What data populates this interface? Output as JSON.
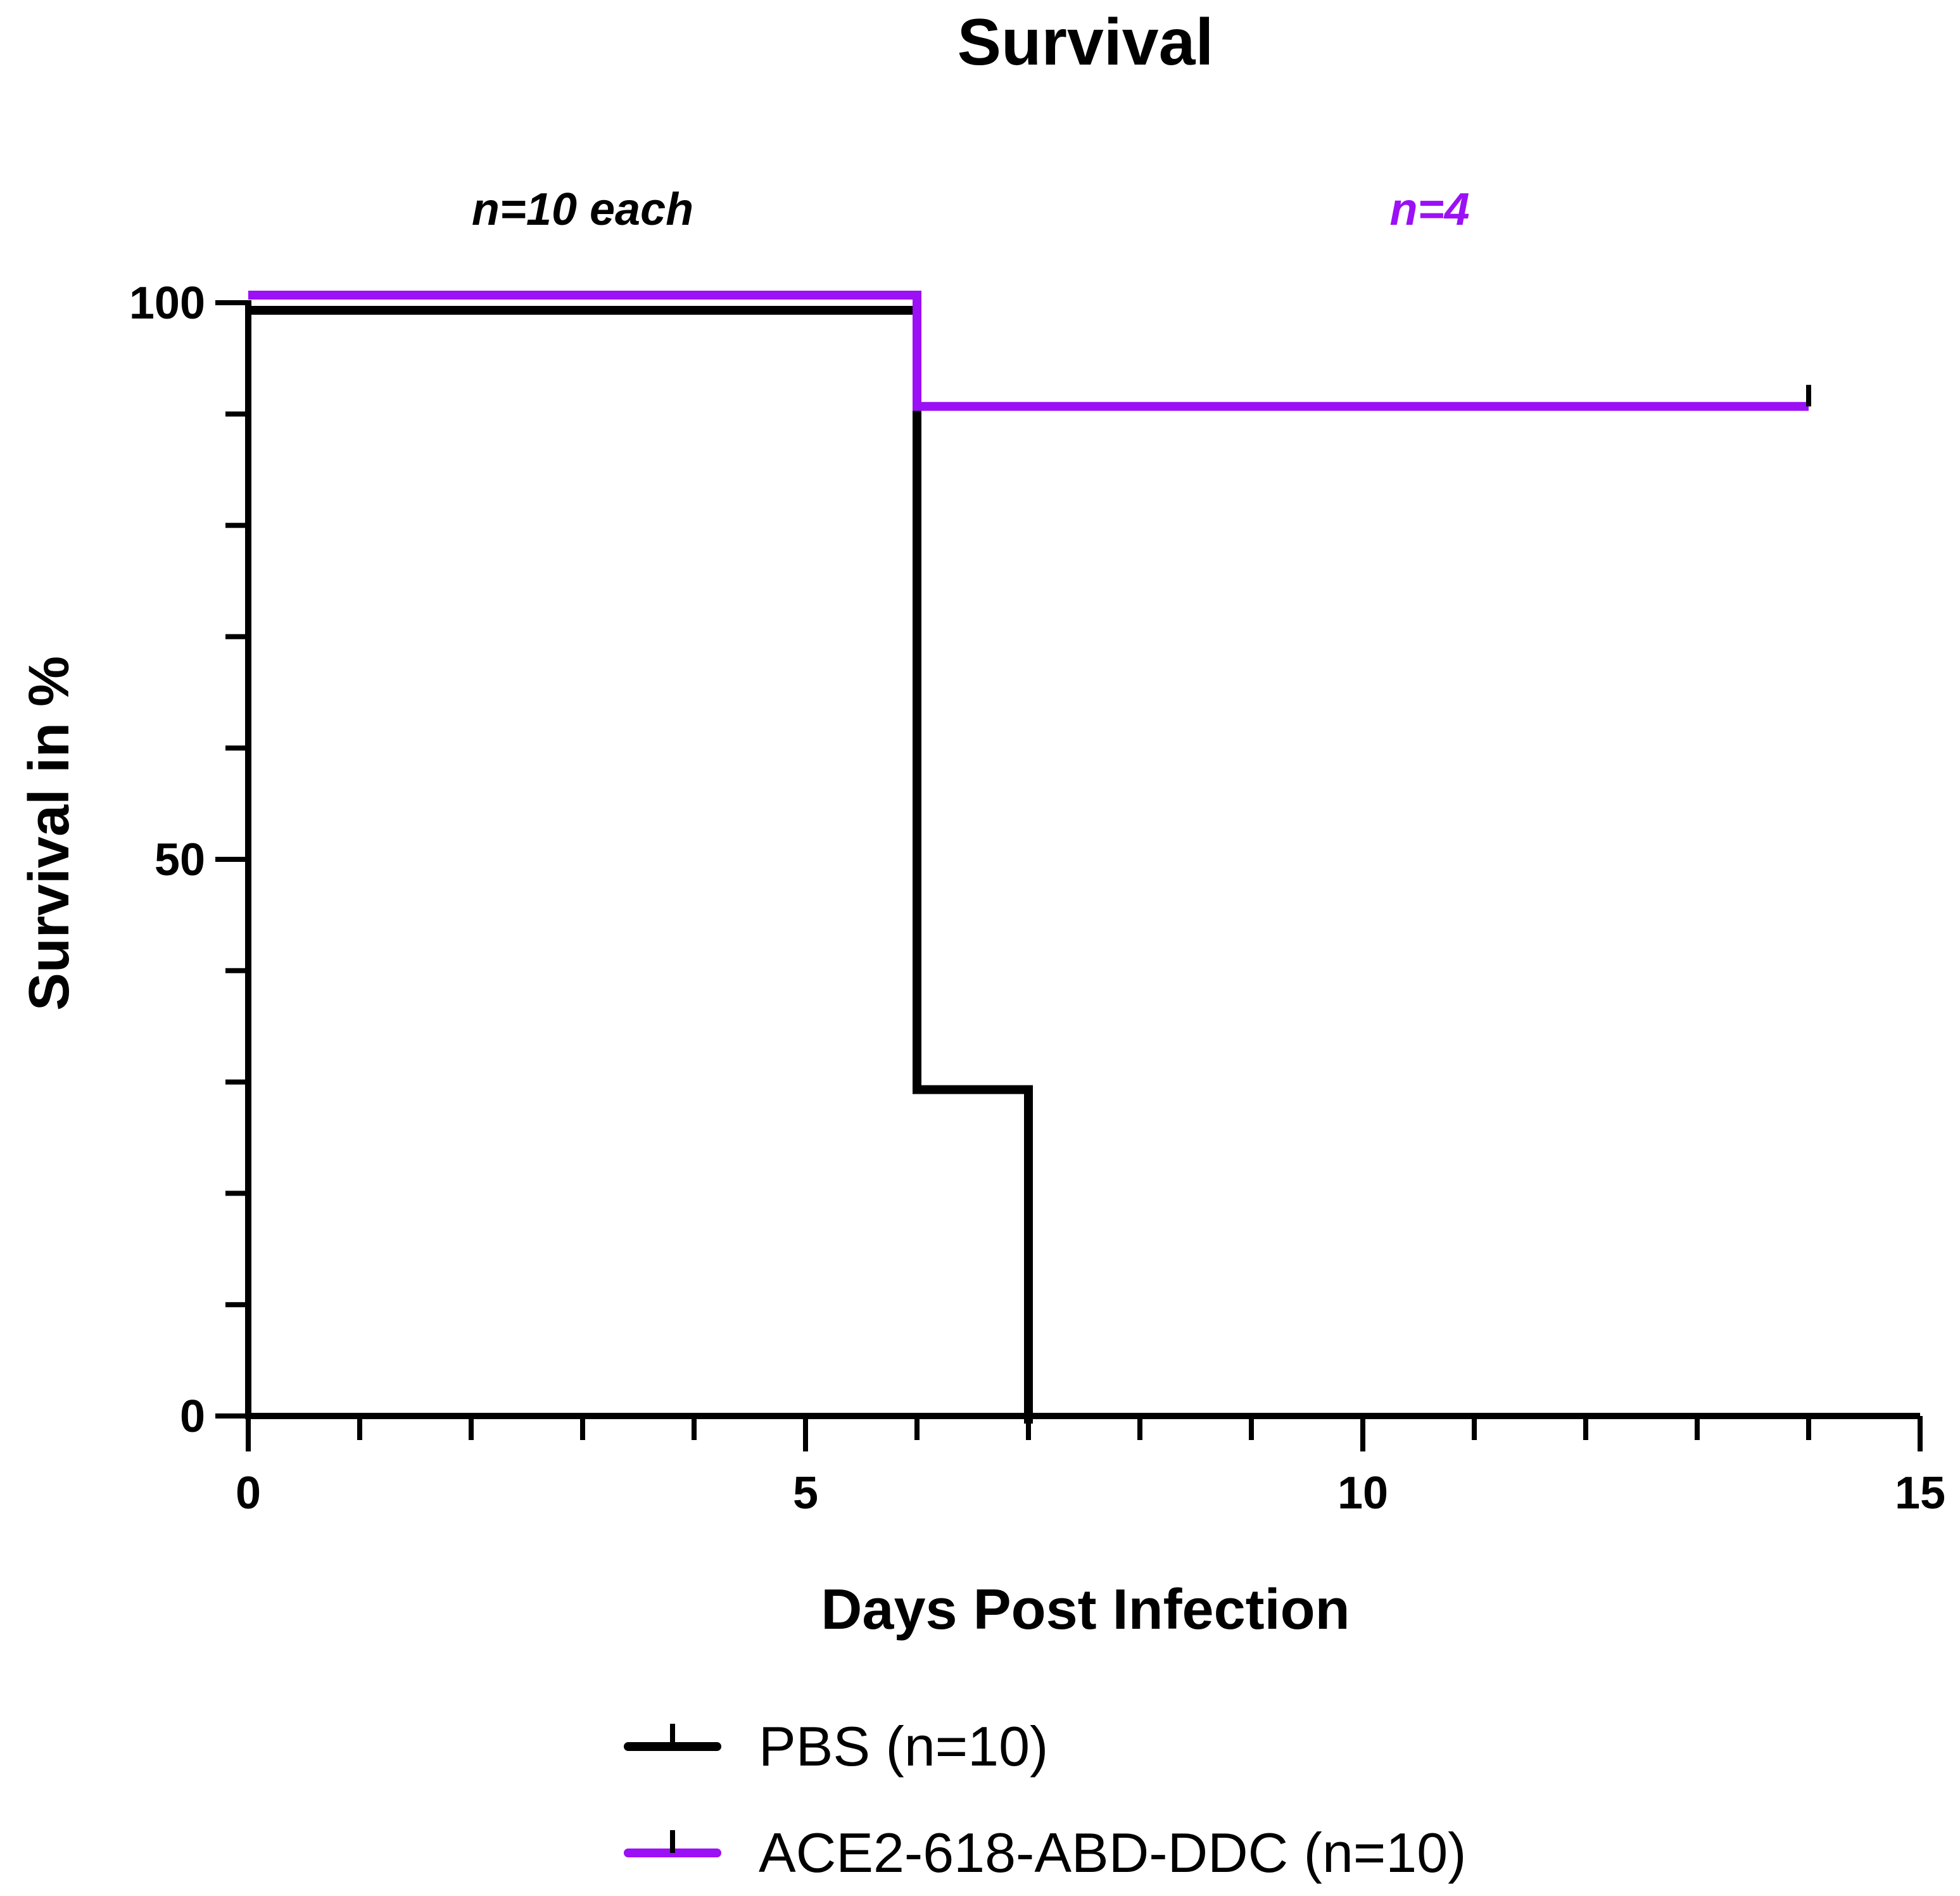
{
  "chart_data": {
    "type": "line",
    "subtype": "kaplan-meier step",
    "title": "Survival",
    "xlabel": "Days Post Infection",
    "ylabel": "Survival in %",
    "xlim": [
      0,
      15
    ],
    "ylim": [
      0,
      100
    ],
    "x_ticks": [
      0,
      5,
      10,
      15
    ],
    "x_minor_tick_step": 1,
    "y_ticks": [
      0,
      50,
      100
    ],
    "y_minor_tick_step": 10,
    "grid": false,
    "legend_position": "bottom-center",
    "annotations": [
      {
        "text": "n=10 each",
        "x": 3.0,
        "y": 107,
        "color": "#000000"
      },
      {
        "text": "n=4",
        "x": 10.6,
        "y": 107,
        "color": "#9b10f5"
      }
    ],
    "series": [
      {
        "name": "PBS (n=10)",
        "color": "#000000",
        "points": [
          {
            "x": 0,
            "y": 100
          },
          {
            "x": 6,
            "y": 100
          },
          {
            "x": 6,
            "y": 30
          },
          {
            "x": 7,
            "y": 30
          },
          {
            "x": 7,
            "y": 0
          }
        ]
      },
      {
        "name": "ACE2-618-ABD-DDC (n=10)",
        "color": "#9b10f5",
        "points": [
          {
            "x": 0,
            "y": 100
          },
          {
            "x": 6,
            "y": 100
          },
          {
            "x": 6,
            "y": 90
          },
          {
            "x": 14,
            "y": 90
          }
        ],
        "censored": [
          {
            "x": 14,
            "y": 90
          }
        ]
      }
    ]
  }
}
